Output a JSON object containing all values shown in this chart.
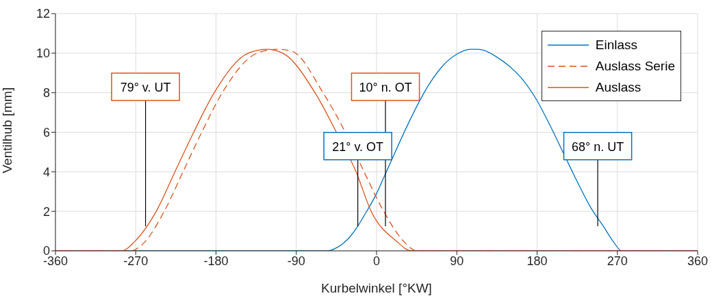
{
  "chart_data": {
    "type": "line",
    "xlabel": "Kurbelwinkel [°KW]",
    "ylabel": "Ventilhub [mm]",
    "xlim": [
      -360,
      360
    ],
    "xticks": [
      -360,
      -270,
      -180,
      -90,
      0,
      90,
      180,
      270,
      360
    ],
    "ylim": [
      0,
      12
    ],
    "yticks": [
      0,
      2,
      4,
      6,
      8,
      10,
      12
    ],
    "grid": true,
    "legend": "top right",
    "marker": "none",
    "series": [
      {
        "name": "Einlass",
        "color": "#0072bd",
        "line_style": "solid",
        "x": [
          -360,
          -55,
          -45,
          -30,
          -21,
          -15,
          0,
          10,
          15,
          30,
          45,
          60,
          75,
          90,
          105,
          112,
          120,
          135,
          150,
          165,
          180,
          195,
          210,
          225,
          240,
          255,
          265,
          275,
          360
        ],
        "values": [
          0,
          0,
          0.15,
          0.7,
          1.25,
          1.7,
          2.9,
          3.9,
          4.4,
          5.9,
          7.3,
          8.5,
          9.4,
          9.95,
          10.2,
          10.2,
          10.15,
          9.8,
          9.3,
          8.6,
          7.6,
          6.3,
          4.9,
          3.5,
          2.2,
          1.2,
          0.5,
          0,
          0
        ]
      },
      {
        "name": "Auslass Serie",
        "color": "#d95319",
        "line_style": "dashed",
        "x": [
          -360,
          -276,
          -262,
          -238,
          -217,
          -196,
          -173,
          -134,
          -112,
          -95,
          -60,
          -35,
          -14,
          8,
          30,
          45,
          360
        ],
        "values": [
          0,
          0,
          0.35,
          2,
          4,
          6,
          8,
          10,
          10.2,
          10.1,
          8,
          6,
          4,
          2,
          0.5,
          0,
          0
        ]
      },
      {
        "name": "Auslass",
        "color": "#d95319",
        "line_style": "solid",
        "x": [
          -360,
          -286,
          -271,
          -247,
          -226,
          -205,
          -182,
          -144,
          -123,
          -105,
          -69,
          -45,
          -23,
          -6,
          22,
          39,
          360
        ],
        "values": [
          0,
          0,
          0.48,
          2,
          4,
          6,
          8,
          10,
          10.2,
          10,
          8,
          6,
          4,
          2,
          0.5,
          0,
          0
        ]
      }
    ],
    "ref_lines": [
      {
        "axis": "x",
        "value": -259,
        "label": "79° v. UT"
      },
      {
        "axis": "x",
        "value": 10,
        "label": "10° n. OT"
      },
      {
        "axis": "x",
        "value": -21,
        "label": "21° v. OT"
      },
      {
        "axis": "x",
        "value": 248,
        "label": "68° n. UT"
      }
    ]
  }
}
